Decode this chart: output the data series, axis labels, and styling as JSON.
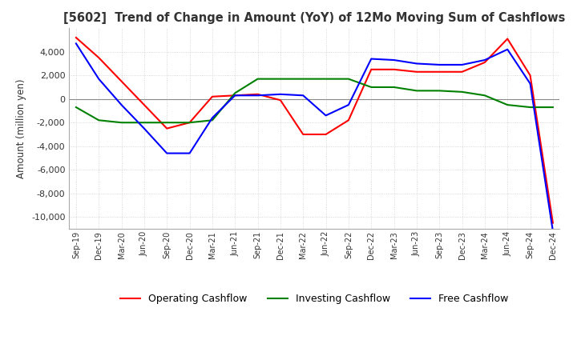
{
  "title": "[5602]  Trend of Change in Amount (YoY) of 12Mo Moving Sum of Cashflows",
  "ylabel": "Amount (million yen)",
  "ylim": [
    -11000,
    6000
  ],
  "yticks": [
    -10000,
    -8000,
    -6000,
    -4000,
    -2000,
    0,
    2000,
    4000
  ],
  "background_color": "#ffffff",
  "grid_color": "#cccccc",
  "x_labels": [
    "Sep-19",
    "Dec-19",
    "Mar-20",
    "Jun-20",
    "Sep-20",
    "Dec-20",
    "Mar-21",
    "Jun-21",
    "Sep-21",
    "Dec-21",
    "Mar-22",
    "Jun-22",
    "Sep-22",
    "Dec-22",
    "Mar-23",
    "Jun-23",
    "Sep-23",
    "Dec-23",
    "Mar-24",
    "Jun-24",
    "Sep-24",
    "Dec-24"
  ],
  "operating": [
    5200,
    3500,
    1500,
    -500,
    -2500,
    -2000,
    200,
    300,
    400,
    -100,
    -3000,
    -3000,
    -1800,
    2500,
    2500,
    2300,
    2300,
    2300,
    3100,
    5100,
    2000,
    -10500
  ],
  "investing": [
    -700,
    -1800,
    -2000,
    -2000,
    -2000,
    -2000,
    -1800,
    500,
    1700,
    1700,
    1700,
    1700,
    1700,
    1000,
    1000,
    700,
    700,
    600,
    300,
    -500,
    -700,
    -700
  ],
  "free": [
    4700,
    1700,
    -500,
    -2500,
    -4600,
    -4600,
    -1600,
    300,
    300,
    400,
    300,
    -1400,
    -500,
    3400,
    3300,
    3000,
    2900,
    2900,
    3300,
    4200,
    1300,
    -11200
  ],
  "line_colors": {
    "operating": "#ff0000",
    "investing": "#008000",
    "free": "#0000ff"
  },
  "legend_labels": [
    "Operating Cashflow",
    "Investing Cashflow",
    "Free Cashflow"
  ]
}
